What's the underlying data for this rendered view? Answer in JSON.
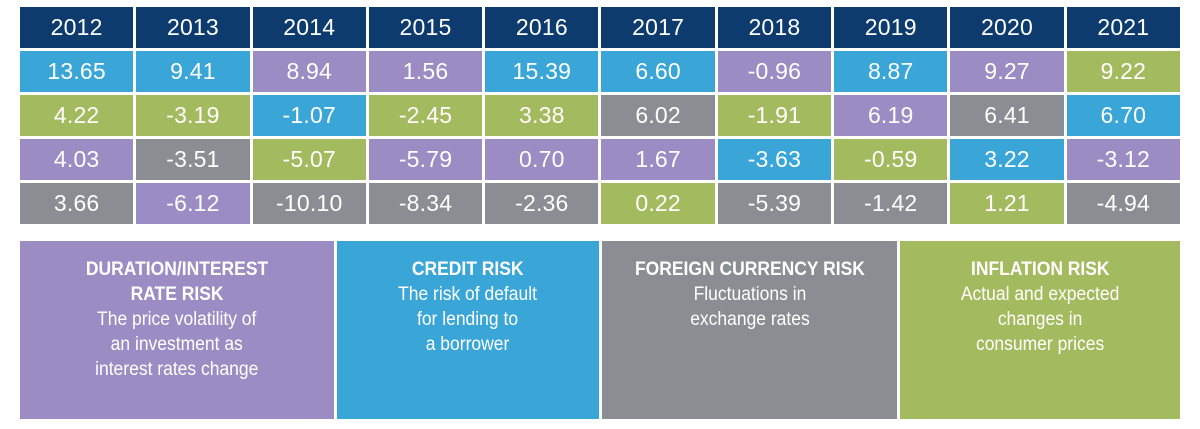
{
  "colors": {
    "header": "#0d3b6e",
    "duration": "#9b8dc4",
    "credit": "#3aa6d8",
    "currency": "#8a8d91",
    "inflation": "#a3bb5e"
  },
  "chart_data": {
    "type": "table",
    "columns": [
      "2012",
      "2013",
      "2014",
      "2015",
      "2016",
      "2017",
      "2018",
      "2019",
      "2020",
      "2021"
    ],
    "rows": [
      [
        {
          "value": "13.65",
          "risk": "credit"
        },
        {
          "value": "9.41",
          "risk": "credit"
        },
        {
          "value": "8.94",
          "risk": "duration"
        },
        {
          "value": "1.56",
          "risk": "duration"
        },
        {
          "value": "15.39",
          "risk": "credit"
        },
        {
          "value": "6.60",
          "risk": "credit"
        },
        {
          "value": "-0.96",
          "risk": "duration"
        },
        {
          "value": "8.87",
          "risk": "credit"
        },
        {
          "value": "9.27",
          "risk": "duration"
        },
        {
          "value": "9.22",
          "risk": "inflation"
        }
      ],
      [
        {
          "value": "4.22",
          "risk": "inflation"
        },
        {
          "value": "-3.19",
          "risk": "inflation"
        },
        {
          "value": "-1.07",
          "risk": "credit"
        },
        {
          "value": "-2.45",
          "risk": "inflation"
        },
        {
          "value": "3.38",
          "risk": "inflation"
        },
        {
          "value": "6.02",
          "risk": "currency"
        },
        {
          "value": "-1.91",
          "risk": "inflation"
        },
        {
          "value": "6.19",
          "risk": "duration"
        },
        {
          "value": "6.41",
          "risk": "currency"
        },
        {
          "value": "6.70",
          "risk": "credit"
        }
      ],
      [
        {
          "value": "4.03",
          "risk": "duration"
        },
        {
          "value": "-3.51",
          "risk": "currency"
        },
        {
          "value": "-5.07",
          "risk": "inflation"
        },
        {
          "value": "-5.79",
          "risk": "duration"
        },
        {
          "value": "0.70",
          "risk": "duration"
        },
        {
          "value": "1.67",
          "risk": "duration"
        },
        {
          "value": "-3.63",
          "risk": "credit"
        },
        {
          "value": "-0.59",
          "risk": "inflation"
        },
        {
          "value": "3.22",
          "risk": "credit"
        },
        {
          "value": "-3.12",
          "risk": "duration"
        }
      ],
      [
        {
          "value": "3.66",
          "risk": "currency"
        },
        {
          "value": "-6.12",
          "risk": "duration"
        },
        {
          "value": "-10.10",
          "risk": "currency"
        },
        {
          "value": "-8.34",
          "risk": "currency"
        },
        {
          "value": "-2.36",
          "risk": "currency"
        },
        {
          "value": "0.22",
          "risk": "inflation"
        },
        {
          "value": "-5.39",
          "risk": "currency"
        },
        {
          "value": "-1.42",
          "risk": "currency"
        },
        {
          "value": "1.21",
          "risk": "inflation"
        },
        {
          "value": "-4.94",
          "risk": "currency"
        }
      ]
    ],
    "legend": [
      {
        "key": "duration",
        "title": "DURATION/INTEREST\nRATE RISK",
        "description": "The price volatility of\nan investment as\ninterest rates change"
      },
      {
        "key": "credit",
        "title": "CREDIT RISK",
        "description": "The risk of default\nfor lending to\na borrower"
      },
      {
        "key": "currency",
        "title": "FOREIGN CURRENCY RISK",
        "description": "Fluctuations in\nexchange rates"
      },
      {
        "key": "inflation",
        "title": "INFLATION RISK",
        "description": "Actual and expected\nchanges in\nconsumer prices"
      }
    ]
  }
}
